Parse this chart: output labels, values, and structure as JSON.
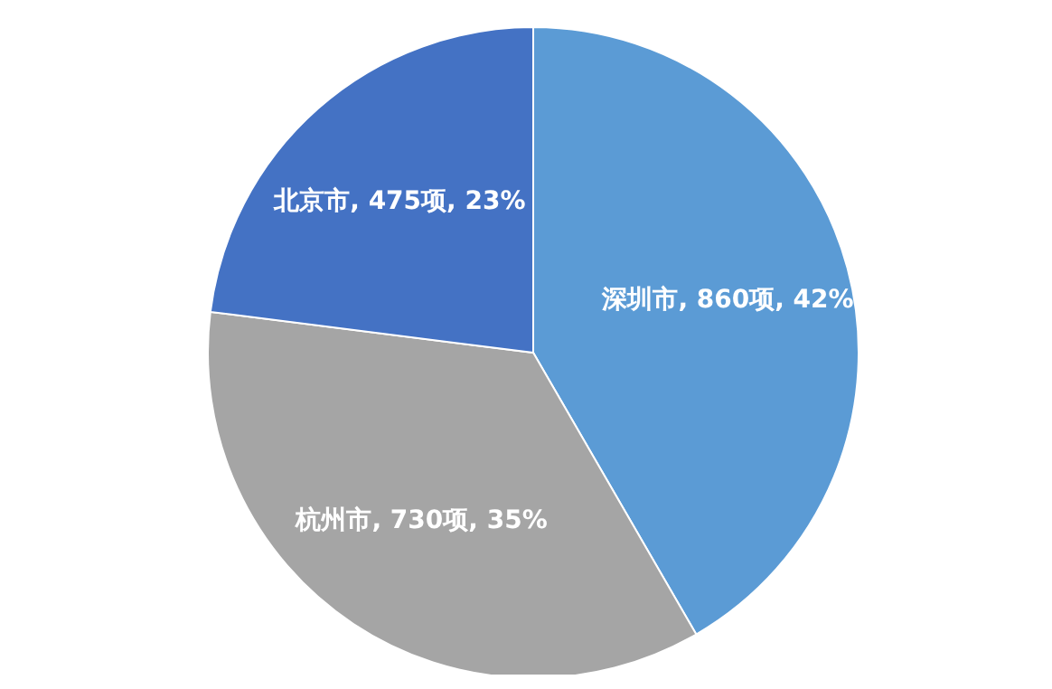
{
  "chart_data": {
    "type": "pie",
    "categories": [
      "深圳市",
      "杭州市",
      "北京市"
    ],
    "values": [
      860,
      730,
      475
    ],
    "colors": [
      "#5b9bd5",
      "#a5a5a5",
      "#4472c4"
    ],
    "value_labels": [
      "860项, 42%",
      "730项, 35%",
      "475项, 23%"
    ],
    "legend": false
  }
}
